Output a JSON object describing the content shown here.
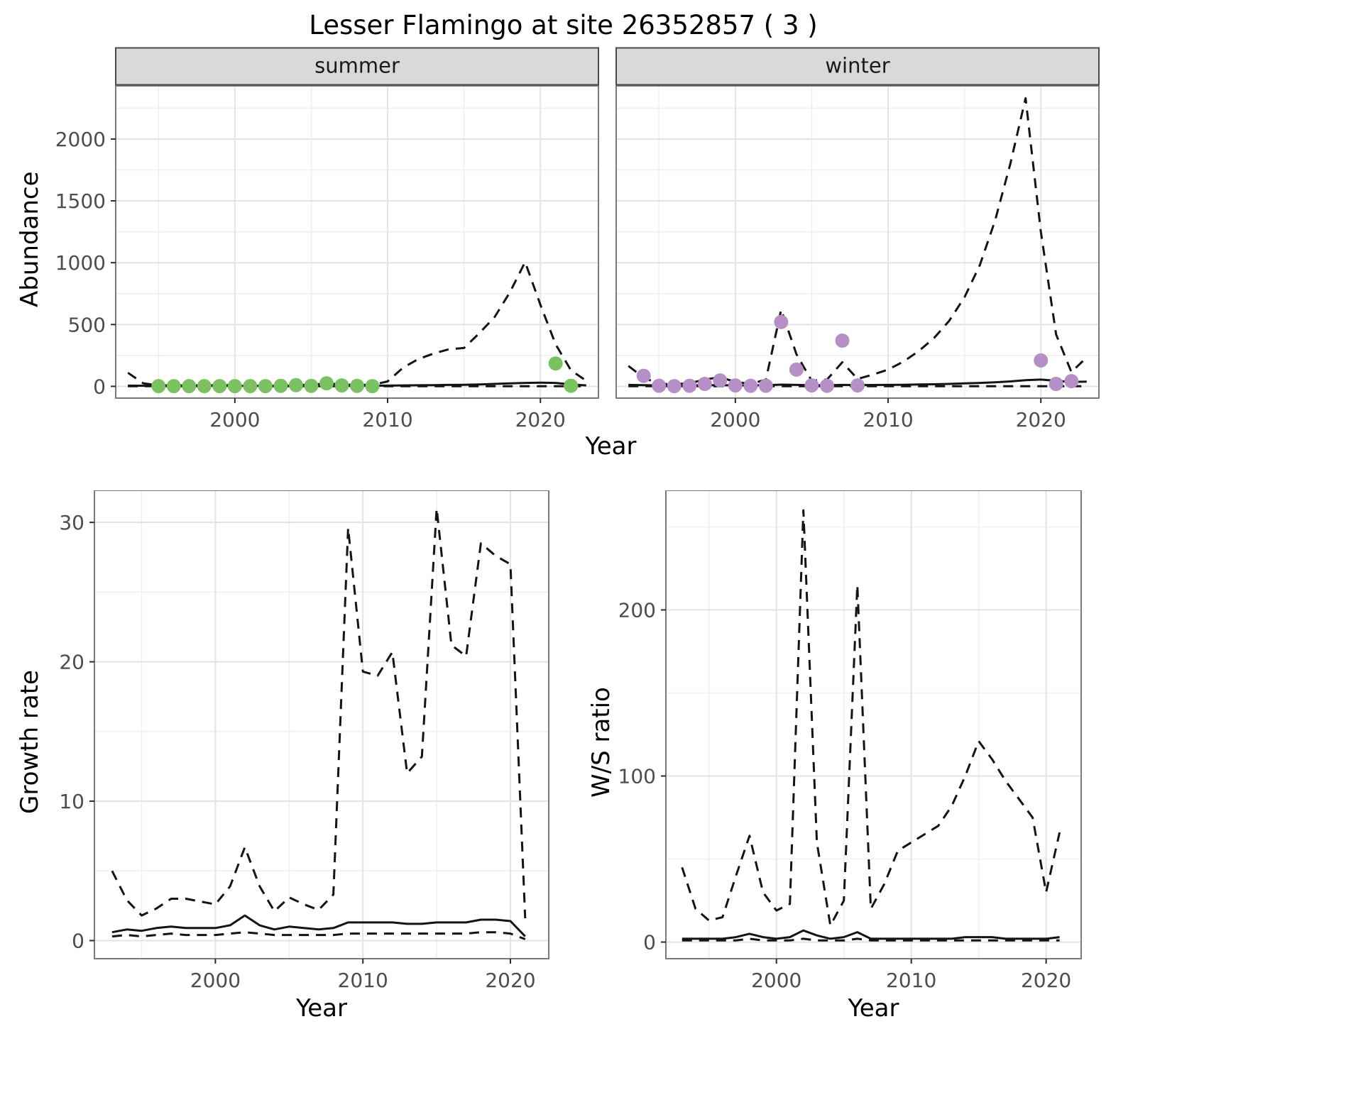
{
  "title": "Lesser Flamingo at site 26352857 ( 3 )",
  "abundance": {
    "ylabel": "Abundance",
    "xlabel": "Year"
  },
  "growth": {
    "ylabel": "Growth rate",
    "xlabel": "Year"
  },
  "ws": {
    "ylabel": "W/S ratio",
    "xlabel": "Year"
  },
  "colors": {
    "line": "#141414",
    "summer_points": "#7ac162",
    "winter_points": "#b58fc6",
    "grid_major": "#e3e3e3",
    "grid_minor": "#f0f0f0",
    "strip_bg": "#d9d9d9",
    "panel_border": "#7a7a7a",
    "tick_text": "#4d4d4d"
  },
  "chart_data": [
    {
      "id": "summer",
      "type": "line",
      "facet": "summer",
      "xlabel": "Year",
      "ylabel": "Abundance",
      "xlim": [
        1992.2,
        2023.8
      ],
      "ylim": [
        -95,
        2430
      ],
      "xticks": [
        2000,
        2010,
        2020
      ],
      "yticks": [
        0,
        500,
        1000,
        1500,
        2000
      ],
      "grid": true,
      "legend": "none",
      "series": [
        {
          "name": "upper-ci",
          "style": "dashed",
          "x": [
            1993,
            1994,
            1995,
            1996,
            1997,
            1998,
            1999,
            2000,
            2001,
            2002,
            2003,
            2004,
            2005,
            2006,
            2007,
            2008,
            2009,
            2010,
            2011,
            2012,
            2013,
            2014,
            2015,
            2016,
            2017,
            2018,
            2019,
            2020,
            2021,
            2022,
            2023
          ],
          "y": [
            110,
            25,
            8,
            8,
            8,
            8,
            10,
            10,
            8,
            8,
            10,
            12,
            12,
            25,
            15,
            12,
            12,
            40,
            150,
            220,
            265,
            300,
            310,
            430,
            560,
            760,
            1005,
            660,
            340,
            130,
            45
          ]
        },
        {
          "name": "mean",
          "style": "solid",
          "x": [
            1993,
            1994,
            1995,
            1996,
            1997,
            1998,
            1999,
            2000,
            2001,
            2002,
            2003,
            2004,
            2005,
            2006,
            2007,
            2008,
            2009,
            2010,
            2011,
            2012,
            2013,
            2014,
            2015,
            2016,
            2017,
            2018,
            2019,
            2020,
            2021,
            2022,
            2023
          ],
          "y": [
            6,
            5,
            4,
            4,
            4,
            4,
            4,
            4,
            4,
            4,
            4,
            5,
            5,
            6,
            5,
            5,
            5,
            6,
            8,
            9,
            10,
            12,
            13,
            16,
            20,
            24,
            28,
            30,
            28,
            16,
            8
          ]
        },
        {
          "name": "lower-ci",
          "style": "dashed",
          "x": [
            1993,
            1994,
            1995,
            1996,
            1997,
            1998,
            1999,
            2000,
            2001,
            2002,
            2003,
            2004,
            2005,
            2006,
            2007,
            2008,
            2009,
            2010,
            2011,
            2012,
            2013,
            2014,
            2015,
            2016,
            2017,
            2018,
            2019,
            2020,
            2021,
            2022,
            2023
          ],
          "y": [
            1,
            1,
            1,
            1,
            1,
            1,
            1,
            1,
            1,
            1,
            1,
            1,
            1,
            1,
            1,
            1,
            1,
            1,
            1,
            1,
            1,
            1,
            1,
            1,
            1,
            1,
            1,
            1,
            1,
            1,
            1
          ]
        }
      ],
      "points": {
        "color_key": "summer_points",
        "x": [
          1995,
          1996,
          1997,
          1998,
          1999,
          2000,
          2001,
          2002,
          2003,
          2004,
          2005,
          2006,
          2007,
          2008,
          2009,
          2021,
          2022
        ],
        "y": [
          2,
          2,
          2,
          2,
          2,
          2,
          2,
          2,
          4,
          10,
          4,
          25,
          8,
          4,
          2,
          185,
          5
        ]
      }
    },
    {
      "id": "winter",
      "type": "line",
      "facet": "winter",
      "xlabel": "Year",
      "ylabel": "Abundance",
      "xlim": [
        1992.2,
        2023.8
      ],
      "ylim": [
        -95,
        2430
      ],
      "xticks": [
        2000,
        2010,
        2020
      ],
      "yticks": [
        0,
        500,
        1000,
        1500,
        2000
      ],
      "grid": true,
      "legend": "none",
      "series": [
        {
          "name": "upper-ci",
          "style": "dashed",
          "x": [
            1993,
            1994,
            1995,
            1996,
            1997,
            1998,
            1999,
            2000,
            2001,
            2002,
            2003,
            2004,
            2005,
            2006,
            2007,
            2008,
            2009,
            2010,
            2011,
            2012,
            2013,
            2014,
            2015,
            2016,
            2017,
            2018,
            2019,
            2020,
            2021,
            2022,
            2023
          ],
          "y": [
            165,
            70,
            20,
            18,
            25,
            55,
            75,
            35,
            20,
            55,
            620,
            260,
            45,
            55,
            195,
            60,
            95,
            135,
            200,
            285,
            390,
            530,
            720,
            980,
            1340,
            1800,
            2330,
            1250,
            420,
            115,
            235
          ]
        },
        {
          "name": "mean",
          "style": "solid",
          "x": [
            1993,
            1994,
            1995,
            1996,
            1997,
            1998,
            1999,
            2000,
            2001,
            2002,
            2003,
            2004,
            2005,
            2006,
            2007,
            2008,
            2009,
            2010,
            2011,
            2012,
            2013,
            2014,
            2015,
            2016,
            2017,
            2018,
            2019,
            2020,
            2021,
            2022,
            2023
          ],
          "y": [
            12,
            10,
            8,
            8,
            8,
            9,
            10,
            8,
            8,
            9,
            14,
            12,
            9,
            9,
            12,
            10,
            11,
            12,
            13,
            15,
            17,
            20,
            24,
            28,
            33,
            40,
            50,
            55,
            45,
            35,
            38
          ]
        },
        {
          "name": "lower-ci",
          "style": "dashed",
          "x": [
            1993,
            1994,
            1995,
            1996,
            1997,
            1998,
            1999,
            2000,
            2001,
            2002,
            2003,
            2004,
            2005,
            2006,
            2007,
            2008,
            2009,
            2010,
            2011,
            2012,
            2013,
            2014,
            2015,
            2016,
            2017,
            2018,
            2019,
            2020,
            2021,
            2022,
            2023
          ],
          "y": [
            1,
            1,
            1,
            1,
            1,
            1,
            1,
            1,
            1,
            1,
            1,
            1,
            1,
            1,
            1,
            1,
            1,
            1,
            1,
            1,
            1,
            1,
            1,
            1,
            1,
            1,
            1,
            1,
            1,
            1,
            1
          ]
        }
      ],
      "points": {
        "color_key": "winter_points",
        "x": [
          1994,
          1995,
          1996,
          1997,
          1998,
          1999,
          2000,
          2001,
          2002,
          2003,
          2004,
          2005,
          2006,
          2007,
          2008,
          2020,
          2021,
          2022
        ],
        "y": [
          85,
          5,
          2,
          5,
          20,
          48,
          8,
          5,
          5,
          520,
          135,
          8,
          5,
          370,
          8,
          210,
          20,
          42
        ]
      }
    },
    {
      "id": "growth",
      "type": "line",
      "facet": null,
      "xlabel": "Year",
      "ylabel": "Growth rate",
      "xlim": [
        1991.8,
        2022.6
      ],
      "ylim": [
        -1.3,
        32.3
      ],
      "xticks": [
        2000,
        2010,
        2020
      ],
      "yticks": [
        0,
        10,
        20,
        30
      ],
      "grid": true,
      "legend": "none",
      "series": [
        {
          "name": "upper-ci",
          "style": "dashed",
          "x": [
            1993,
            1994,
            1995,
            1996,
            1997,
            1998,
            1999,
            2000,
            2001,
            2002,
            2003,
            2004,
            2005,
            2006,
            2007,
            2008,
            2009,
            2010,
            2011,
            2012,
            2013,
            2014,
            2015,
            2016,
            2017,
            2018,
            2019,
            2020,
            2021
          ],
          "y": [
            5.0,
            2.9,
            1.8,
            2.3,
            3.0,
            3.0,
            2.8,
            2.6,
            3.9,
            6.7,
            3.9,
            2.1,
            3.1,
            2.6,
            2.2,
            3.3,
            29.6,
            19.3,
            19.0,
            20.7,
            12.0,
            13.2,
            31.0,
            21.2,
            20.4,
            28.5,
            27.6,
            27.0,
            1.6
          ]
        },
        {
          "name": "mean",
          "style": "solid",
          "x": [
            1993,
            1994,
            1995,
            1996,
            1997,
            1998,
            1999,
            2000,
            2001,
            2002,
            2003,
            2004,
            2005,
            2006,
            2007,
            2008,
            2009,
            2010,
            2011,
            2012,
            2013,
            2014,
            2015,
            2016,
            2017,
            2018,
            2019,
            2020,
            2021
          ],
          "y": [
            0.6,
            0.8,
            0.7,
            0.9,
            1.0,
            0.9,
            0.9,
            0.9,
            1.1,
            1.8,
            1.1,
            0.8,
            1.0,
            0.9,
            0.8,
            0.9,
            1.3,
            1.3,
            1.3,
            1.3,
            1.2,
            1.2,
            1.3,
            1.3,
            1.3,
            1.5,
            1.5,
            1.4,
            0.3
          ]
        },
        {
          "name": "lower-ci",
          "style": "dashed",
          "x": [
            1993,
            1994,
            1995,
            1996,
            1997,
            1998,
            1999,
            2000,
            2001,
            2002,
            2003,
            2004,
            2005,
            2006,
            2007,
            2008,
            2009,
            2010,
            2011,
            2012,
            2013,
            2014,
            2015,
            2016,
            2017,
            2018,
            2019,
            2020,
            2021
          ],
          "y": [
            0.3,
            0.4,
            0.3,
            0.4,
            0.5,
            0.4,
            0.4,
            0.4,
            0.5,
            0.6,
            0.5,
            0.4,
            0.4,
            0.4,
            0.4,
            0.4,
            0.5,
            0.5,
            0.5,
            0.5,
            0.5,
            0.5,
            0.5,
            0.5,
            0.5,
            0.6,
            0.6,
            0.5,
            0.1
          ]
        }
      ],
      "points": null
    },
    {
      "id": "ws",
      "type": "line",
      "facet": null,
      "xlabel": "Year",
      "ylabel": "W/S ratio",
      "xlim": [
        1991.8,
        2022.6
      ],
      "ylim": [
        -10,
        272
      ],
      "xticks": [
        2000,
        2010,
        2020
      ],
      "yticks": [
        0,
        100,
        200
      ],
      "grid": true,
      "legend": "none",
      "series": [
        {
          "name": "upper-ci",
          "style": "dashed",
          "x": [
            1993,
            1994,
            1995,
            1996,
            1997,
            1998,
            1999,
            2000,
            2001,
            2002,
            2003,
            2004,
            2005,
            2006,
            2007,
            2008,
            2009,
            2010,
            2011,
            2012,
            2013,
            2014,
            2015,
            2016,
            2017,
            2018,
            2019,
            2020,
            2021
          ],
          "y": [
            45,
            20,
            13,
            15,
            40,
            64,
            30,
            19,
            23,
            260,
            60,
            10,
            25,
            215,
            20,
            35,
            55,
            60,
            65,
            70,
            82,
            100,
            121,
            110,
            97,
            86,
            75,
            30,
            66
          ]
        },
        {
          "name": "mean",
          "style": "solid",
          "x": [
            1993,
            1994,
            1995,
            1996,
            1997,
            1998,
            1999,
            2000,
            2001,
            2002,
            2003,
            2004,
            2005,
            2006,
            2007,
            2008,
            2009,
            2010,
            2011,
            2012,
            2013,
            2014,
            2015,
            2016,
            2017,
            2018,
            2019,
            2020,
            2021
          ],
          "y": [
            2,
            2,
            2,
            2,
            3,
            5,
            3,
            2,
            3,
            7,
            4,
            2,
            3,
            6,
            2,
            2,
            2,
            2,
            2,
            2,
            2,
            3,
            3,
            3,
            2,
            2,
            2,
            2,
            3
          ]
        },
        {
          "name": "lower-ci",
          "style": "dashed",
          "x": [
            1993,
            1994,
            1995,
            1996,
            1997,
            1998,
            1999,
            2000,
            2001,
            2002,
            2003,
            2004,
            2005,
            2006,
            2007,
            2008,
            2009,
            2010,
            2011,
            2012,
            2013,
            2014,
            2015,
            2016,
            2017,
            2018,
            2019,
            2020,
            2021
          ],
          "y": [
            1,
            1,
            1,
            1,
            1,
            2,
            1,
            1,
            1,
            2,
            1,
            1,
            1,
            2,
            1,
            1,
            1,
            1,
            1,
            1,
            1,
            1,
            1,
            1,
            1,
            1,
            1,
            1,
            1
          ]
        }
      ],
      "points": null
    }
  ]
}
